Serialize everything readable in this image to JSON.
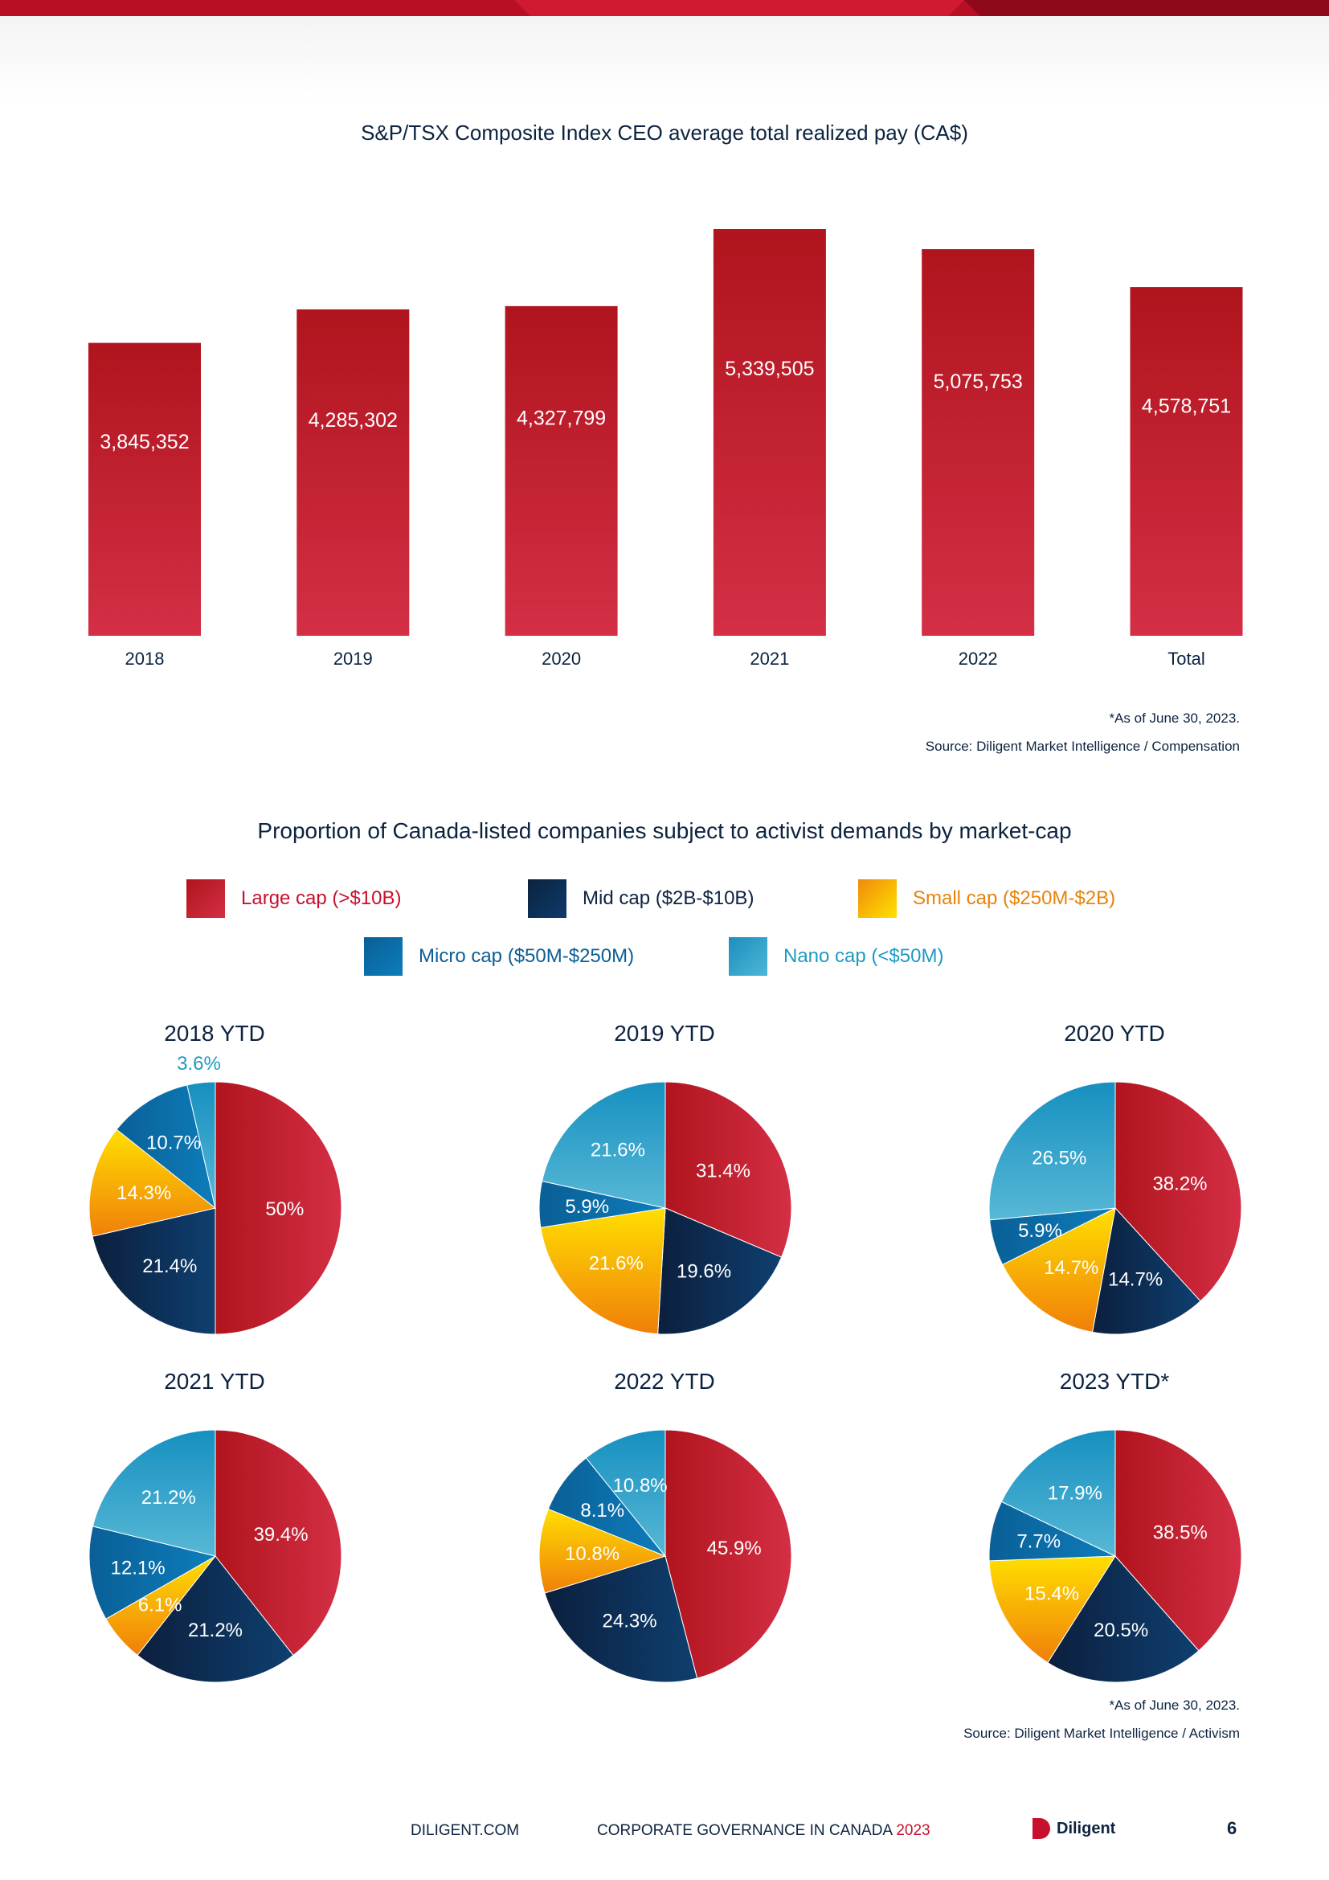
{
  "colors": {
    "large": "#c8102e",
    "mid": "#0c2d55",
    "small": "#f7b500",
    "micro": "#0b6fa8",
    "nano": "#2aa3c9",
    "navy": "#0c2340"
  },
  "bar_chart": {
    "title": "S&P/TSX Composite Index CEO average total realized pay (CA$)",
    "footnote": "*As of June 30, 2023.",
    "source": "Source: Diligent Market Intelligence / Compensation"
  },
  "pie_section": {
    "title": "Proportion of Canada-listed companies subject to activist demands by market-cap",
    "legend": [
      {
        "label": "Large cap (>$10B)",
        "color": "#c8102e",
        "text_color": "#c8102e"
      },
      {
        "label": "Mid cap ($2B-$10B)",
        "color": "#0c2d55",
        "text_color": "#0c2340"
      },
      {
        "label": "Small cap ($250M-$2B)",
        "color": "#f7b500",
        "text_color": "#e8820c"
      },
      {
        "label": "Micro cap ($50M-$250M)",
        "color": "#0b6fa8",
        "text_color": "#0b5e94"
      },
      {
        "label": "Nano cap (<$50M)",
        "color": "#2aa3c9",
        "text_color": "#1e9ac4"
      }
    ],
    "footnote": "*As of June 30, 2023.",
    "source": "Source: Diligent Market Intelligence / Activism"
  },
  "chart_data": [
    {
      "type": "bar",
      "title": "S&P/TSX Composite Index CEO average total realized pay (CA$)",
      "categories": [
        "2018",
        "2019",
        "2020",
        "2021",
        "2022",
        "Total"
      ],
      "values": [
        3845352,
        4285302,
        4327799,
        5339505,
        5075753,
        4578751
      ],
      "value_labels": [
        "3,845,352",
        "4,285,302",
        "4,327,799",
        "5,339,505",
        "5,075,753",
        "4,578,751"
      ],
      "ylim": [
        0,
        5339505
      ]
    },
    {
      "type": "pie",
      "title": "2018 YTD",
      "slices": [
        {
          "key": "large",
          "value": 50,
          "label": "50%"
        },
        {
          "key": "mid",
          "value": 21.4,
          "label": "21.4%"
        },
        {
          "key": "small",
          "value": 14.3,
          "label": "14.3%"
        },
        {
          "key": "micro",
          "value": 10.7,
          "label": "10.7%"
        },
        {
          "key": "nano",
          "value": 3.6,
          "label": "3.6%"
        }
      ]
    },
    {
      "type": "pie",
      "title": "2019 YTD",
      "slices": [
        {
          "key": "large",
          "value": 31.4,
          "label": "31.4%"
        },
        {
          "key": "mid",
          "value": 19.6,
          "label": "19.6%"
        },
        {
          "key": "small",
          "value": 21.6,
          "label": "21.6%"
        },
        {
          "key": "micro",
          "value": 5.9,
          "label": "5.9%"
        },
        {
          "key": "nano",
          "value": 21.6,
          "label": "21.6%"
        }
      ]
    },
    {
      "type": "pie",
      "title": "2020 YTD",
      "slices": [
        {
          "key": "large",
          "value": 38.2,
          "label": "38.2%"
        },
        {
          "key": "mid",
          "value": 14.7,
          "label": "14.7%"
        },
        {
          "key": "small",
          "value": 14.7,
          "label": "14.7%"
        },
        {
          "key": "micro",
          "value": 5.9,
          "label": "5.9%"
        },
        {
          "key": "nano",
          "value": 26.5,
          "label": "26.5%"
        }
      ]
    },
    {
      "type": "pie",
      "title": "2021 YTD",
      "slices": [
        {
          "key": "large",
          "value": 39.4,
          "label": "39.4%"
        },
        {
          "key": "mid",
          "value": 21.2,
          "label": "21.2%"
        },
        {
          "key": "small",
          "value": 6.1,
          "label": "6.1%"
        },
        {
          "key": "micro",
          "value": 12.1,
          "label": "12.1%"
        },
        {
          "key": "nano",
          "value": 21.2,
          "label": "21.2%"
        }
      ]
    },
    {
      "type": "pie",
      "title": "2022 YTD",
      "slices": [
        {
          "key": "large",
          "value": 45.9,
          "label": "45.9%"
        },
        {
          "key": "mid",
          "value": 24.3,
          "label": "24.3%"
        },
        {
          "key": "small",
          "value": 10.8,
          "label": "10.8%"
        },
        {
          "key": "micro",
          "value": 8.1,
          "label": "8.1%"
        },
        {
          "key": "nano",
          "value": 10.8,
          "label": "10.8%"
        }
      ]
    },
    {
      "type": "pie",
      "title": "2023 YTD*",
      "slices": [
        {
          "key": "large",
          "value": 38.5,
          "label": "38.5%"
        },
        {
          "key": "mid",
          "value": 20.5,
          "label": "20.5%"
        },
        {
          "key": "small",
          "value": 15.4,
          "label": "15.4%"
        },
        {
          "key": "micro",
          "value": 7.7,
          "label": "7.7%"
        },
        {
          "key": "nano",
          "value": 17.9,
          "label": "17.9%"
        }
      ]
    }
  ],
  "footer": {
    "site": "DILIGENT.COM",
    "report": "CORPORATE GOVERNANCE IN CANADA",
    "year": "2023",
    "brand": "Diligent",
    "page": "6"
  }
}
